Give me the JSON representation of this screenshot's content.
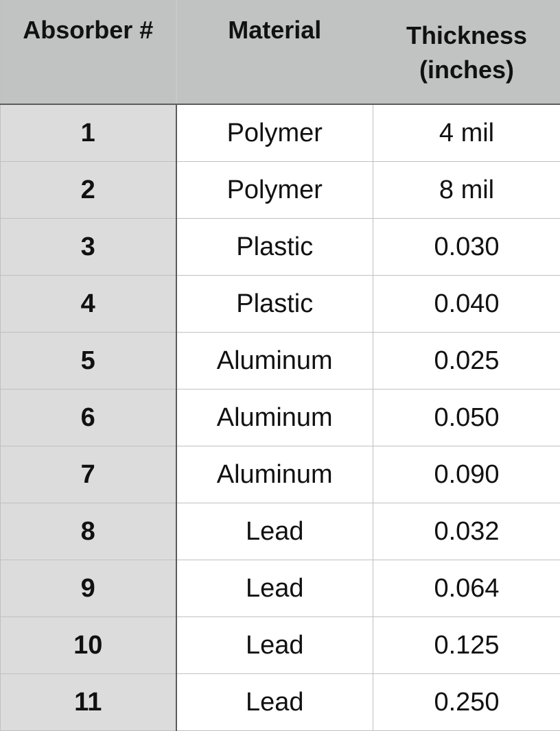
{
  "table": {
    "headers": {
      "absorber": "Absorber #",
      "material": "Material",
      "thickness_line1": "Thickness",
      "thickness_line2": "(inches)"
    },
    "rows": [
      {
        "absorber": "1",
        "material": "Polymer",
        "thickness": "4 mil"
      },
      {
        "absorber": "2",
        "material": "Polymer",
        "thickness": "8 mil"
      },
      {
        "absorber": "3",
        "material": "Plastic",
        "thickness": "0.030"
      },
      {
        "absorber": "4",
        "material": "Plastic",
        "thickness": "0.040"
      },
      {
        "absorber": "5",
        "material": "Aluminum",
        "thickness": "0.025"
      },
      {
        "absorber": "6",
        "material": "Aluminum",
        "thickness": "0.050"
      },
      {
        "absorber": "7",
        "material": "Aluminum",
        "thickness": "0.090"
      },
      {
        "absorber": "8",
        "material": "Lead",
        "thickness": "0.032"
      },
      {
        "absorber": "9",
        "material": "Lead",
        "thickness": "0.064"
      },
      {
        "absorber": "10",
        "material": "Lead",
        "thickness": "0.125"
      },
      {
        "absorber": "11",
        "material": "Lead",
        "thickness": "0.250"
      }
    ]
  },
  "colors": {
    "header_bg": "#c1c3c2",
    "first_column_bg": "#dcdcdc",
    "cell_bg": "#ffffff",
    "grid_line": "#c0c0c0",
    "divider_line": "#5b5b5b"
  }
}
